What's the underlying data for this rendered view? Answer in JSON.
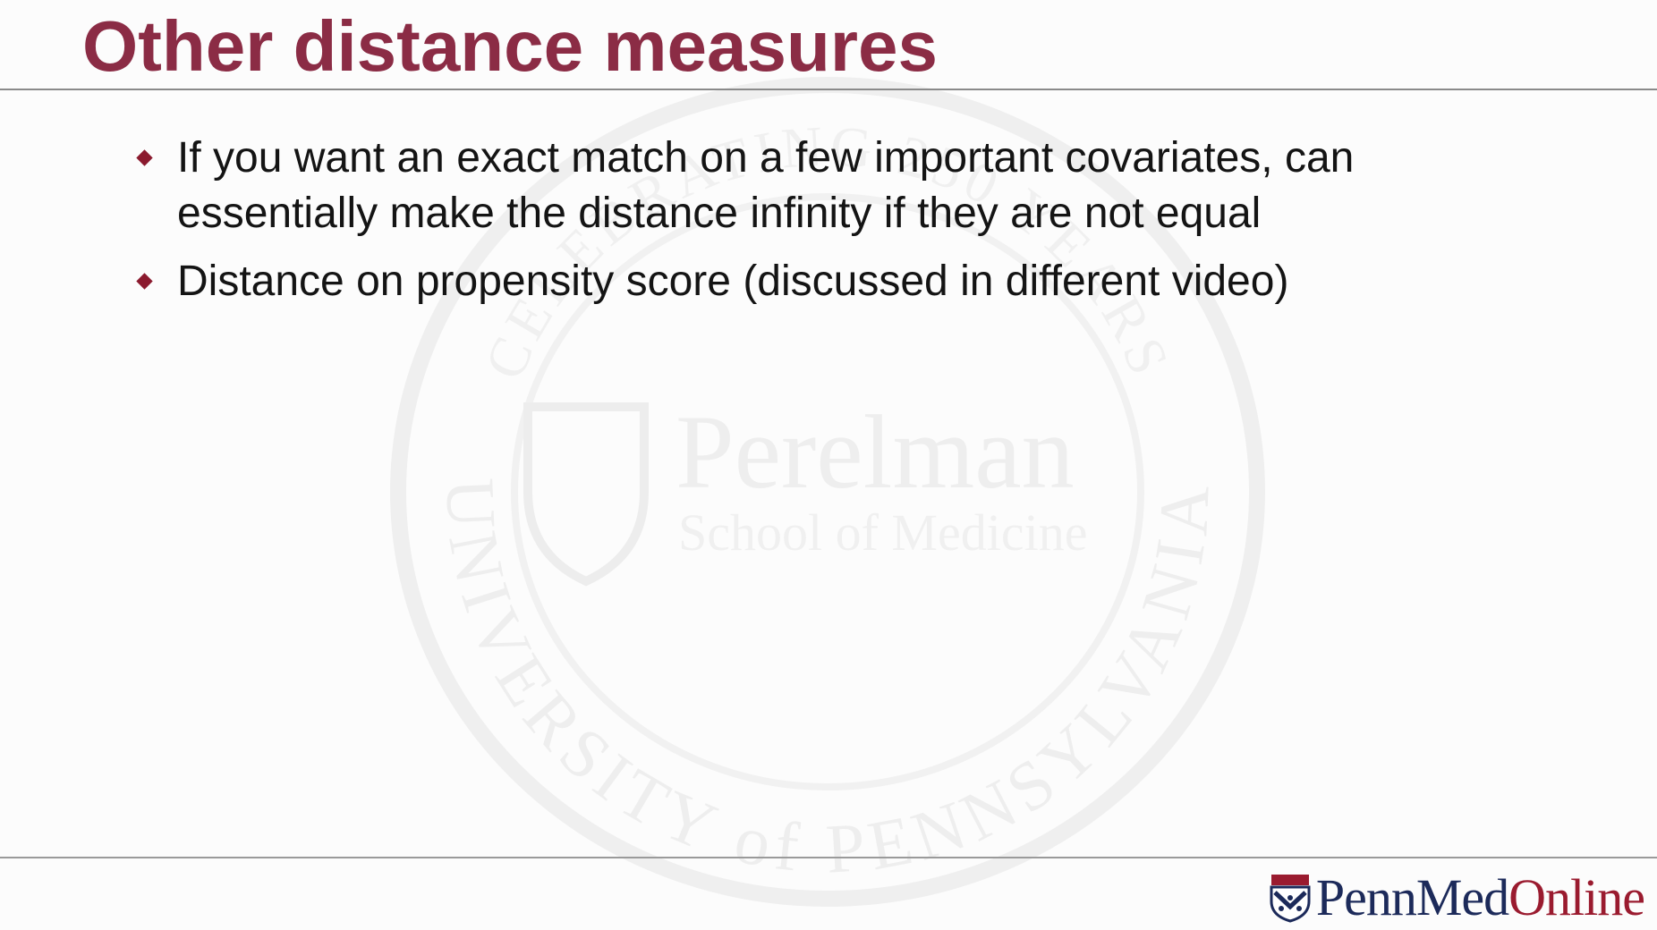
{
  "slide": {
    "title": "Other distance measures",
    "bullets": [
      "If you want an exact match on a few important covariates, can essentially make the distance infinity if they are not equal",
      "Distance on propensity score (discussed in different video)"
    ]
  },
  "watermark": {
    "top_arc": "CELEBRATING 250 YEARS",
    "name_line1": "Perelman",
    "name_line2": "School of Medicine",
    "bottom_arc": "UNIVERSITY of PENNSYLVANIA"
  },
  "logo": {
    "part1": "Penn",
    "part2": "Med",
    "part3": "Online"
  },
  "colors": {
    "title": "#8b2c45",
    "bullet_marker": "#8b1a2e",
    "logo_navy": "#1c2a5a",
    "logo_red": "#9a1b2f"
  }
}
